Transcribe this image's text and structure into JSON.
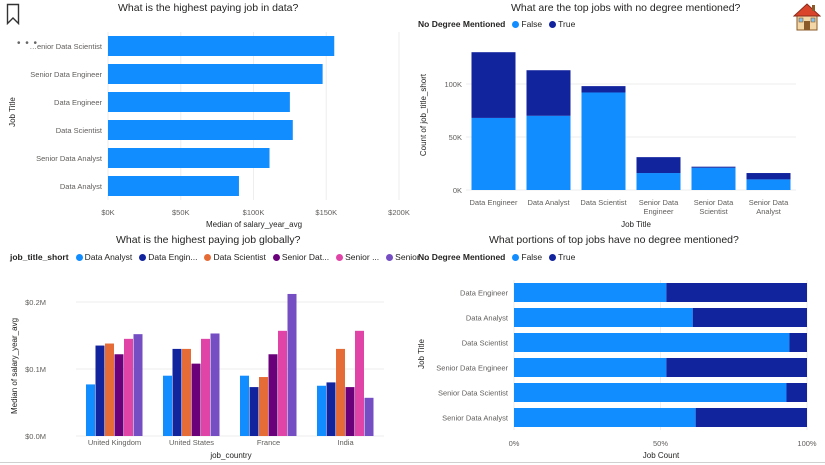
{
  "icons": {
    "bookmark": "bookmark-icon",
    "home": "house-icon",
    "more": "more-options-icon"
  },
  "charts": {
    "c1": {
      "title": "What is the highest paying job in data?",
      "ylabel": "Job Title",
      "xlabel": "Median of salary_year_avg",
      "xticks": [
        "$0K",
        "$50K",
        "$100K",
        "$150K",
        "$200K"
      ]
    },
    "c2": {
      "title": "What are the top jobs with no degree mentioned?",
      "ylabel": "Count of job_title_short",
      "xlabel": "Job Title",
      "yticks": [
        "0K",
        "50K",
        "100K"
      ],
      "legend_title": "No Degree Mentioned",
      "legend": [
        "False",
        "True"
      ]
    },
    "c3": {
      "title": "What is the highest paying job globally?",
      "ylabel": "Median of salary_year_avg",
      "xlabel": "job_country",
      "yticks": [
        "$0.0M",
        "$0.1M",
        "$0.2M"
      ],
      "legend_title": "job_title_short",
      "legend": [
        "Data Analyst",
        "Data Engin...",
        "Data Scientist",
        "Senior Dat...",
        "Senior ...",
        "Senior ..."
      ]
    },
    "c4": {
      "title": "What portions of top jobs have no degree mentioned?",
      "ylabel": "Job Title",
      "xlabel": "Job Count",
      "xticks": [
        "0%",
        "50%",
        "100%"
      ],
      "legend_title": "No Degree Mentioned",
      "legend": [
        "False",
        "True"
      ]
    }
  },
  "colors": {
    "false": "#118DFF",
    "true": "#12239E",
    "c3": [
      "#118DFF",
      "#12239E",
      "#E66C37",
      "#6B007B",
      "#E044A7",
      "#744EC2"
    ]
  },
  "chart_data": [
    {
      "type": "bar",
      "orientation": "horizontal",
      "title": "What is the highest paying job in data?",
      "xlabel": "Median of salary_year_avg",
      "ylabel": "Job Title",
      "categories": [
        "Senior Data Scientist",
        "Senior Data Engineer",
        "Data Engineer",
        "Data Scientist",
        "Senior Data Analyst",
        "Data Analyst"
      ],
      "category_labels": [
        "…enior Data Scientist",
        "Senior Data Engineer",
        "Data Engineer",
        "Data Scientist",
        "Senior Data Analyst",
        "Data Analyst"
      ],
      "values": [
        155500,
        147500,
        125000,
        127000,
        111000,
        90000
      ],
      "xlim": [
        0,
        200000
      ]
    },
    {
      "type": "bar",
      "stacked": true,
      "title": "What are the top jobs with no degree mentioned?",
      "xlabel": "Job Title",
      "ylabel": "Count of job_title_short",
      "categories": [
        "Data Engineer",
        "Data Analyst",
        "Data Scientist",
        "Senior Data Engineer",
        "Senior Data Scientist",
        "Senior Data Analyst"
      ],
      "series": [
        {
          "name": "False",
          "values": [
            68000,
            70000,
            92000,
            16000,
            21000,
            10000
          ]
        },
        {
          "name": "True",
          "values": [
            62000,
            43000,
            6000,
            15000,
            1000,
            6000
          ]
        }
      ],
      "ylim": [
        0,
        130000
      ]
    },
    {
      "type": "bar",
      "title": "What is the highest paying job globally?",
      "xlabel": "job_country",
      "ylabel": "Median of salary_year_avg",
      "categories": [
        "United Kingdom",
        "United States",
        "France",
        "India"
      ],
      "series": [
        {
          "name": "Data Analyst",
          "values": [
            77000,
            90000,
            90000,
            75000
          ]
        },
        {
          "name": "Data Engin...",
          "values": [
            135000,
            130000,
            73000,
            80000
          ]
        },
        {
          "name": "Data Scientist",
          "values": [
            138000,
            130000,
            88000,
            130000
          ]
        },
        {
          "name": "Senior Dat...",
          "values": [
            122000,
            108000,
            122000,
            73000
          ]
        },
        {
          "name": "Senior ...",
          "values": [
            145000,
            145000,
            157000,
            157000
          ]
        },
        {
          "name": "Senior ...",
          "values": [
            152000,
            153000,
            212000,
            57000
          ]
        }
      ],
      "ylim": [
        0,
        250000
      ]
    },
    {
      "type": "bar",
      "orientation": "horizontal",
      "stacked": "100%",
      "title": "What portions of top jobs have no degree mentioned?",
      "xlabel": "Job Count",
      "ylabel": "Job Title",
      "categories": [
        "Data Engineer",
        "Data Analyst",
        "Data Scientist",
        "Senior Data Engineer",
        "Senior Data Scientist",
        "Senior Data Analyst"
      ],
      "series": [
        {
          "name": "False",
          "values": [
            52,
            61,
            94,
            52,
            93,
            62
          ]
        },
        {
          "name": "True",
          "values": [
            48,
            39,
            6,
            48,
            7,
            38
          ]
        }
      ],
      "xlim": [
        0,
        100
      ]
    }
  ]
}
